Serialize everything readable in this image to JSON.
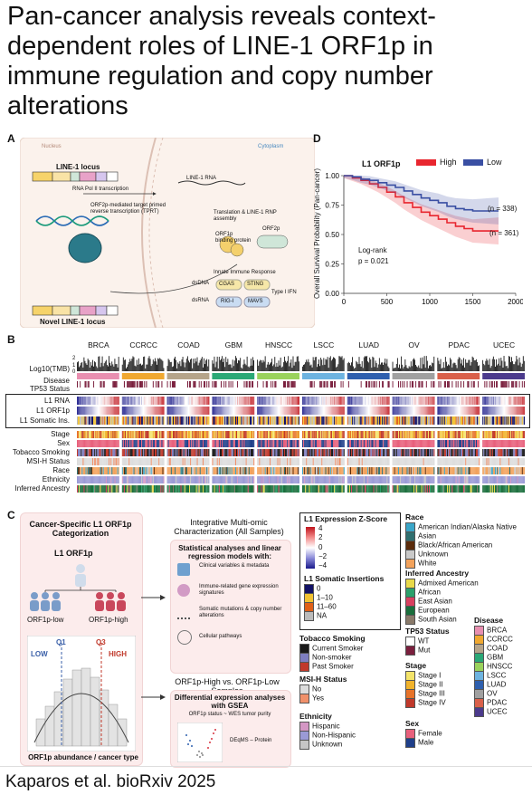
{
  "title": "Pan-cancer analysis reveals context-dependent roles of LINE-1 ORF1p in immune regulation and copy number alterations",
  "footer": "Kaparos et al. bioRxiv 2025",
  "panelA": {
    "label": "A",
    "nucleus": "Nucleus",
    "cytoplasm": "Cytoplasm",
    "locus": "LINE-1 locus",
    "gene_parts": [
      "5'UTR",
      "ORF1",
      "EN",
      "ORF2",
      "RT",
      "pA"
    ],
    "rna_pol": "RNA Pol II transcription",
    "line1_rna": "LINE-1 RNA",
    "translation": "Translation & LINE-1 RNP assembly",
    "orf1p": "ORF1p",
    "orf1p_desc": "binding protein",
    "orf2p": "ORF2p",
    "tprt": "ORF2p-mediated target primed reverse transcription (TPRT)",
    "innate": "Innate Immune Response",
    "dsDNA": "dsDNA",
    "dsRNA": "dsRNA",
    "cgas": "CGAS",
    "sting": "STING",
    "rig": "RIG-I",
    "mavs": "MAVS",
    "ifn": "Type I IFN",
    "novel": "Novel LINE-1 locus"
  },
  "panelB": {
    "label": "B",
    "cancers": [
      "BRCA",
      "CCRCC",
      "COAD",
      "GBM",
      "HNSCC",
      "LSCC",
      "LUAD",
      "OV",
      "PDAC",
      "UCEC"
    ],
    "row_labels_top": [
      "Log10(TMB)",
      "Disease",
      "TP53 Status"
    ],
    "row_labels_box": [
      "L1 RNA",
      "L1 ORF1p",
      "L1 Somatic Ins."
    ],
    "row_labels_bottom": [
      "Stage",
      "Sex",
      "Tobacco Smoking",
      "MSI-H Status",
      "Race",
      "Ethnicity",
      "Inferred Ancestry"
    ],
    "tmb_ticks": [
      "2",
      "1",
      "0"
    ]
  },
  "panelC": {
    "label": "C",
    "left_title": "Cancer-Specific L1 ORF1p Categorization",
    "l1orf1p": "L1 ORF1p",
    "low": "ORF1p-low",
    "high": "ORF1p-high",
    "q1": "Q1",
    "q3": "Q3",
    "hist_low": "LOW",
    "hist_high": "HIGH",
    "hist_x": "ORF1p abundance / cancer type",
    "integ_title": "Integrative Multi-omic Characterization (All Samples)",
    "stat_title": "Statistical analyses and linear regression models with:",
    "items": [
      "Clinical variables & metadata",
      "Immune-related gene expression signatures",
      "Somatic mutations & copy number alterations",
      "Cellular pathways"
    ],
    "vs_title": "ORF1p-High vs. ORF1p-Low Samples",
    "diff_title": "Differential expression analyses with GSEA",
    "diff_sub": "ORF1p status ~ WES tumor purity",
    "deqms": "DEqMS – Protein"
  },
  "panelD": {
    "label": "D",
    "legend_title": "L1 ORF1p",
    "high": "High",
    "low": "Low",
    "ylabel": "Overall Survival Probability (Pan-cancer)",
    "n_low": "(n = 338)",
    "n_high": "(n = 361)",
    "logrank": "Log-rank",
    "pval": "p = 0.021",
    "colors": {
      "high": "#e8262f",
      "low": "#3a4fa3"
    }
  },
  "chart_data": {
    "type": "line",
    "xlabel": "",
    "ylabel": "Overall Survival Probability (Pan-cancer)",
    "xlim": [
      0,
      2000
    ],
    "ylim": [
      0,
      1
    ],
    "xticks": [
      "0",
      "500",
      "1000",
      "1500",
      "2000"
    ],
    "yticks": [
      "0.00",
      "0.25",
      "0.50",
      "0.75",
      "1.00"
    ],
    "legend_title": "L1 ORF1p",
    "series": [
      {
        "name": "High",
        "color": "#e8262f",
        "x": [
          0,
          100,
          200,
          300,
          400,
          500,
          600,
          700,
          800,
          900,
          1000,
          1100,
          1200,
          1300,
          1400,
          1500,
          1600,
          1700,
          1800
        ],
        "y": [
          1.0,
          0.98,
          0.96,
          0.93,
          0.9,
          0.86,
          0.82,
          0.77,
          0.73,
          0.69,
          0.66,
          0.63,
          0.6,
          0.57,
          0.55,
          0.53,
          0.53,
          0.53,
          0.53
        ]
      },
      {
        "name": "Low",
        "color": "#3a4fa3",
        "x": [
          0,
          100,
          200,
          300,
          400,
          500,
          600,
          700,
          800,
          900,
          1000,
          1100,
          1200,
          1300,
          1400,
          1500,
          1600,
          1700,
          1800
        ],
        "y": [
          1.0,
          0.99,
          0.97,
          0.96,
          0.94,
          0.92,
          0.9,
          0.87,
          0.84,
          0.81,
          0.79,
          0.77,
          0.74,
          0.72,
          0.71,
          0.7,
          0.7,
          0.7,
          0.7
        ]
      }
    ]
  },
  "legends": {
    "zscore": {
      "title": "L1 Expression Z-Score",
      "ticks": [
        "4",
        "2",
        "0",
        "−2",
        "−4"
      ]
    },
    "somatic": {
      "title": "L1 Somatic Insertions",
      "items": [
        {
          "label": "0",
          "color": "#111166"
        },
        {
          "label": "1–10",
          "color": "#f1c232"
        },
        {
          "label": "11–60",
          "color": "#e06018"
        },
        {
          "label": "NA",
          "color": "#bbbbbb"
        }
      ]
    },
    "race": {
      "title": "Race",
      "items": [
        {
          "label": "American Indian/Alaska Native",
          "color": "#3aa6c8"
        },
        {
          "label": "Asian",
          "color": "#2f6f6f"
        },
        {
          "label": "Black/African American",
          "color": "#5b2c0c"
        },
        {
          "label": "Unknown",
          "color": "#c9c9c9"
        },
        {
          "label": "White",
          "color": "#f2a25c"
        }
      ]
    },
    "ancestry": {
      "title": "Inferred Ancestry",
      "items": [
        {
          "label": "Admixed American",
          "color": "#e8d94a"
        },
        {
          "label": "African",
          "color": "#2ba06b"
        },
        {
          "label": "East Asian",
          "color": "#d94060"
        },
        {
          "label": "European",
          "color": "#1a6e3c"
        },
        {
          "label": "South Asian",
          "color": "#8a7a6a"
        }
      ]
    },
    "disease": {
      "title": "Disease",
      "items": [
        {
          "label": "BRCA",
          "color": "#e88fb0"
        },
        {
          "label": "CCRCC",
          "color": "#f0a830"
        },
        {
          "label": "COAD",
          "color": "#b5a48a"
        },
        {
          "label": "GBM",
          "color": "#2aa876"
        },
        {
          "label": "HNSCC",
          "color": "#9ad25c"
        },
        {
          "label": "LSCC",
          "color": "#6db3e0"
        },
        {
          "label": "LUAD",
          "color": "#2e5fae"
        },
        {
          "label": "OV",
          "color": "#a0a0a0"
        },
        {
          "label": "PDAC",
          "color": "#d9604a"
        },
        {
          "label": "UCEC",
          "color": "#4b3a8c"
        }
      ]
    },
    "smoking": {
      "title": "Tobacco Smoking",
      "items": [
        {
          "label": "Current Smoker",
          "color": "#1a1a1a"
        },
        {
          "label": "Non-smoker",
          "color": "#7e7ec0"
        },
        {
          "label": "Past Smoker",
          "color": "#c0392b"
        }
      ]
    },
    "tp53": {
      "title": "TP53 Status",
      "items": [
        {
          "label": "WT",
          "color": "#ffffff"
        },
        {
          "label": "Mut",
          "color": "#7a1f3d"
        }
      ]
    },
    "stage": {
      "title": "Stage",
      "items": [
        {
          "label": "Stage I",
          "color": "#f4e46a"
        },
        {
          "label": "Stage II",
          "color": "#f1b32c"
        },
        {
          "label": "Stage III",
          "color": "#e7732a"
        },
        {
          "label": "Stage IV",
          "color": "#c0392b"
        }
      ]
    },
    "msi": {
      "title": "MSI-H Status",
      "items": [
        {
          "label": "No",
          "color": "#dddddd"
        },
        {
          "label": "Yes",
          "color": "#f0906a"
        }
      ]
    },
    "ethnicity": {
      "title": "Ethnicity",
      "items": [
        {
          "label": "Hispanic",
          "color": "#d497c4"
        },
        {
          "label": "Non-Hispanic",
          "color": "#9a9ad6"
        },
        {
          "label": "Unknown",
          "color": "#c6c6c6"
        }
      ]
    },
    "sex": {
      "title": "Sex",
      "items": [
        {
          "label": "Female",
          "color": "#e8607c"
        },
        {
          "label": "Male",
          "color": "#1f3f8a"
        }
      ]
    }
  }
}
